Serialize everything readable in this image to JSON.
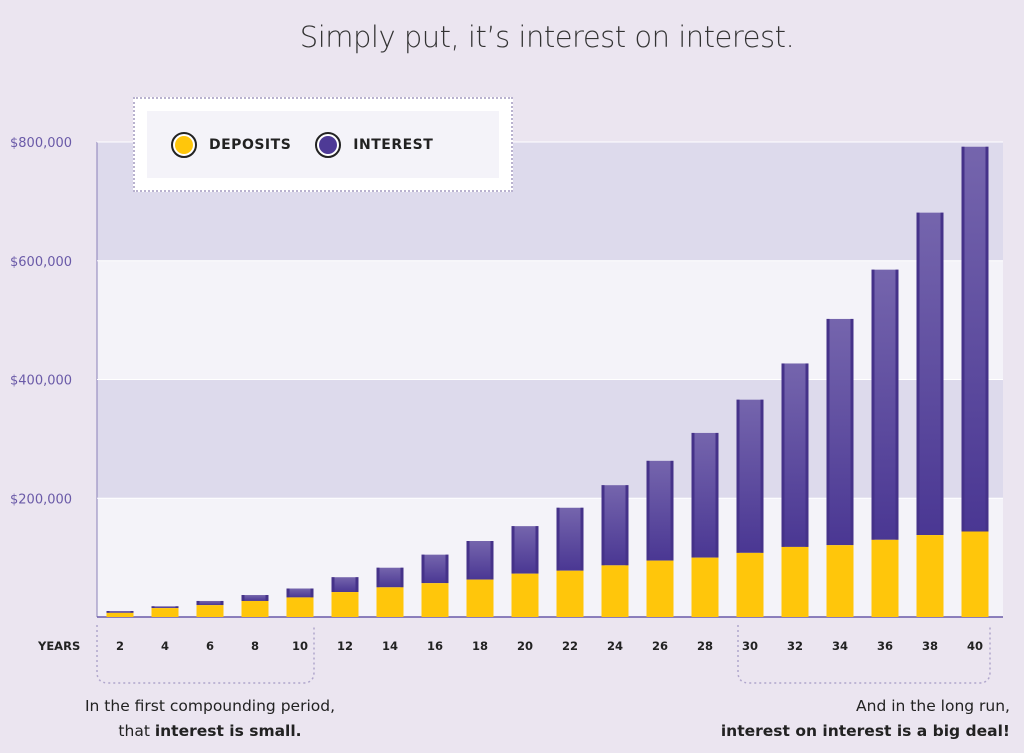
{
  "title": "Simply put, it’s interest on interest.",
  "legend": {
    "deposits": {
      "label": "DEPOSITS",
      "color": "#ffc60b"
    },
    "interest": {
      "label": "INTEREST",
      "color": "#4e3a96"
    }
  },
  "annotations": {
    "left": {
      "line1": "In the first compounding period,",
      "line2_prefix": "that ",
      "line2_bold": "interest is small."
    },
    "right": {
      "line1": "And in the long run,",
      "line2_bold": "interest on interest is a big deal!"
    }
  },
  "chart_data": {
    "type": "bar",
    "stacked": true,
    "title": "Simply put, it’s interest on interest.",
    "xlabel": "YEARS",
    "ylabel": "",
    "ylim": [
      0,
      800000
    ],
    "yticks": [
      200000,
      400000,
      600000,
      800000
    ],
    "ytick_labels": [
      "$200,000",
      "$400,000",
      "$600,000",
      "$800,000"
    ],
    "grid": "alternating horizontal bands",
    "legend_position": "top-left",
    "categories": [
      "2",
      "4",
      "6",
      "8",
      "10",
      "12",
      "14",
      "16",
      "18",
      "20",
      "22",
      "24",
      "26",
      "28",
      "30",
      "32",
      "34",
      "36",
      "38",
      "40"
    ],
    "series": [
      {
        "name": "DEPOSITS",
        "color": "#ffc60b",
        "values": [
          7000,
          15000,
          20000,
          27000,
          33000,
          42000,
          50000,
          57000,
          63000,
          73000,
          78000,
          87000,
          95000,
          100000,
          108000,
          118000,
          121000,
          130000,
          138000,
          144000
        ]
      },
      {
        "name": "INTEREST",
        "color": "#4e3a96",
        "values": [
          3000,
          3000,
          7000,
          10000,
          15000,
          25000,
          33000,
          48000,
          65000,
          80000,
          106000,
          135000,
          168000,
          210000,
          258000,
          309000,
          381000,
          455000,
          543000,
          648000
        ]
      }
    ]
  }
}
